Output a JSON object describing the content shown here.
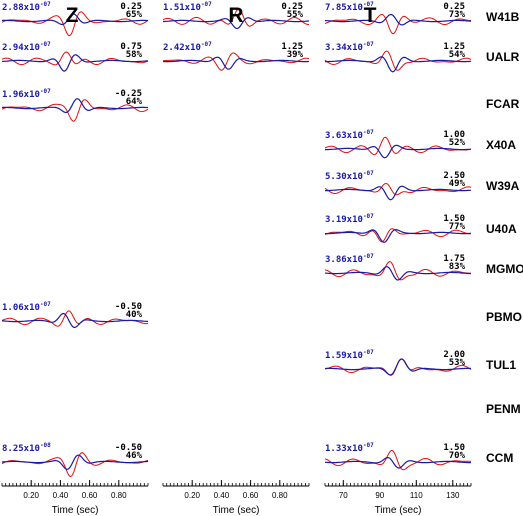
{
  "chart_data": {
    "type": "line",
    "description_colors": {
      "observed": "#e01010",
      "synthetic": "#1a1aa6"
    },
    "panels": [
      {
        "id": "Z",
        "title": "Z",
        "x_axis": {
          "label": "Time (sec)",
          "range": [
            0.0,
            1.0
          ],
          "ticks": [
            "0.20",
            "0.40",
            "0.60",
            "0.80"
          ],
          "tick_values": [
            0.2,
            0.4,
            0.6,
            0.8
          ]
        }
      },
      {
        "id": "R",
        "title": "R",
        "x_axis": {
          "label": "Time (sec)",
          "range": [
            0.0,
            1.0
          ],
          "ticks": [
            "0.20",
            "0.40",
            "0.60",
            "0.80"
          ],
          "tick_values": [
            0.2,
            0.4,
            0.6,
            0.8
          ]
        }
      },
      {
        "id": "T",
        "title": "T",
        "x_axis": {
          "label": "Time (sec)",
          "range": [
            60,
            140
          ],
          "ticks": [
            "70",
            "90",
            "110",
            "130"
          ],
          "tick_values": [
            70,
            90,
            110,
            130
          ]
        }
      }
    ],
    "stations": [
      {
        "name": "W41B",
        "traces": {
          "Z": {
            "amp_mant": "2.88x10",
            "amp_exp": "-07",
            "shift": "0.25",
            "fit": "65%"
          },
          "R": {
            "amp_mant": "1.51x10",
            "amp_exp": "-07",
            "shift": "0.25",
            "fit": "55%"
          },
          "T": {
            "amp_mant": "7.85x10",
            "amp_exp": "-07",
            "shift": "0.25",
            "fit": "73%"
          }
        }
      },
      {
        "name": "UALR",
        "traces": {
          "Z": {
            "amp_mant": "2.94x10",
            "amp_exp": "-07",
            "shift": "0.75",
            "fit": "58%"
          },
          "R": {
            "amp_mant": "2.42x10",
            "amp_exp": "-07",
            "shift": "1.25",
            "fit": "39%"
          },
          "T": {
            "amp_mant": "3.34x10",
            "amp_exp": "-07",
            "shift": "1.25",
            "fit": "54%"
          }
        }
      },
      {
        "name": "FCAR",
        "traces": {
          "Z": {
            "amp_mant": "1.96x10",
            "amp_exp": "-07",
            "shift": "-0.25",
            "fit": "64%"
          }
        }
      },
      {
        "name": "X40A",
        "traces": {
          "T": {
            "amp_mant": "3.63x10",
            "amp_exp": "-07",
            "shift": "1.00",
            "fit": "52%"
          }
        }
      },
      {
        "name": "W39A",
        "traces": {
          "T": {
            "amp_mant": "5.30x10",
            "amp_exp": "-07",
            "shift": "2.50",
            "fit": "49%"
          }
        }
      },
      {
        "name": "U40A",
        "traces": {
          "T": {
            "amp_mant": "3.19x10",
            "amp_exp": "-07",
            "shift": "1.50",
            "fit": "77%"
          }
        }
      },
      {
        "name": "MGMO",
        "traces": {
          "T": {
            "amp_mant": "3.86x10",
            "amp_exp": "-07",
            "shift": "1.75",
            "fit": "83%"
          }
        }
      },
      {
        "name": "PBMO",
        "traces": {
          "Z": {
            "amp_mant": "1.06x10",
            "amp_exp": "-07",
            "shift": "-0.50",
            "fit": "40%"
          }
        }
      },
      {
        "name": "TUL1",
        "traces": {
          "T": {
            "amp_mant": "1.59x10",
            "amp_exp": "-07",
            "shift": "2.00",
            "fit": "53%"
          }
        }
      },
      {
        "name": "PENM",
        "traces": {}
      },
      {
        "name": "CCM",
        "traces": {
          "Z": {
            "amp_mant": "8.25x10",
            "amp_exp": "-08",
            "shift": "-0.50",
            "fit": "46%"
          },
          "T": {
            "amp_mant": "1.33x10",
            "amp_exp": "-07",
            "shift": "1.50",
            "fit": "70%"
          }
        }
      }
    ]
  }
}
